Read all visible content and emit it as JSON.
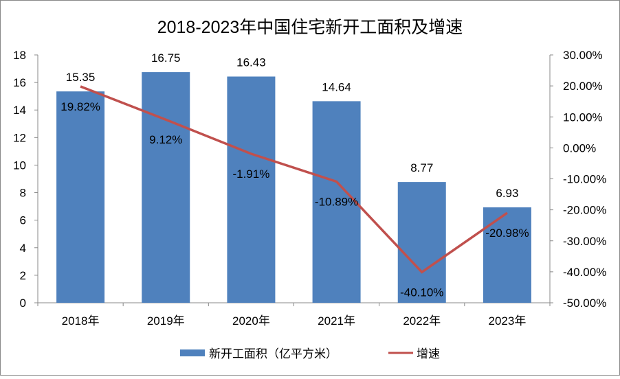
{
  "chart_data": {
    "type": "bar+line",
    "title": "2018-2023年中国住宅新开工面积及增速",
    "categories": [
      "2018年",
      "2019年",
      "2020年",
      "2021年",
      "2022年",
      "2023年"
    ],
    "series": [
      {
        "name": "新开工面积（亿平方米）",
        "type": "bar",
        "axis": "left",
        "color": "#4f81bd",
        "values": [
          15.35,
          16.75,
          16.43,
          14.64,
          8.77,
          6.93
        ],
        "labels": [
          "15.35",
          "16.75",
          "16.43",
          "14.64",
          "8.77",
          "6.93"
        ]
      },
      {
        "name": "增速",
        "type": "line",
        "axis": "right",
        "color": "#c0504d",
        "values": [
          19.82,
          9.12,
          -1.91,
          -10.89,
          -40.1,
          -20.98
        ],
        "labels": [
          "19.82%",
          "9.12%",
          "-1.91%",
          "-10.89%",
          "-40.10%",
          "-20.98%"
        ]
      }
    ],
    "y_left": {
      "ylim": [
        0,
        18
      ],
      "ticks": [
        "0",
        "2",
        "4",
        "6",
        "8",
        "10",
        "12",
        "14",
        "16",
        "18"
      ]
    },
    "y_right": {
      "ylim": [
        -50,
        30
      ],
      "ticks": [
        "-50.00%",
        "-40.00%",
        "-30.00%",
        "-20.00%",
        "-10.00%",
        "0.00%",
        "10.00%",
        "20.00%",
        "30.00%"
      ]
    },
    "grid": false,
    "legend": "bottom"
  }
}
